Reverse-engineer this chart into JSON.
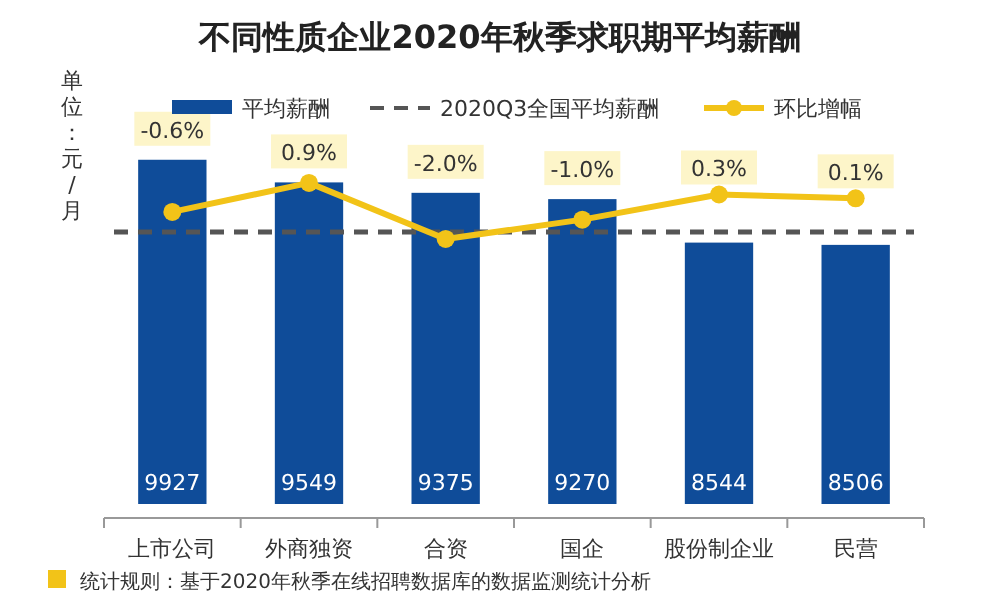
{
  "chart_data": {
    "type": "bar",
    "title": "不同性质企业2020年秋季求职期平均薪酬",
    "ylabel": "单位：元/月",
    "categories": [
      "上市公司",
      "外商独资",
      "合资",
      "国企",
      "股份制企业",
      "民营"
    ],
    "series": [
      {
        "name": "平均薪酬",
        "color": "#0f4c99",
        "values": [
          9927,
          9549,
          9375,
          9270,
          8544,
          8506
        ]
      },
      {
        "name": "环比增幅",
        "type": "line",
        "axis": "y2",
        "color": "#f2c318",
        "marker": "circle",
        "values": [
          -0.6,
          0.9,
          -2.0,
          -1.0,
          0.3,
          0.1
        ],
        "value_labels": [
          "-0.6%",
          "0.9%",
          "-2.0%",
          "-1.0%",
          "0.3%",
          "0.1%"
        ]
      }
    ],
    "data_labels": true,
    "ylim": [
      4180,
      10090
    ],
    "y2lim": [
      -15.7,
      2.6
    ],
    "ref_lines": [
      {
        "axis": "y",
        "value": 8720,
        "label": "2020Q3全国平均薪酬",
        "color": "#555555",
        "line_style": "dashed"
      }
    ],
    "legend": "top",
    "tick_labels": "x",
    "annotations": [
      "统计规则：基于2020年秋季在线招聘数据库的数据监测统计分析"
    ]
  }
}
